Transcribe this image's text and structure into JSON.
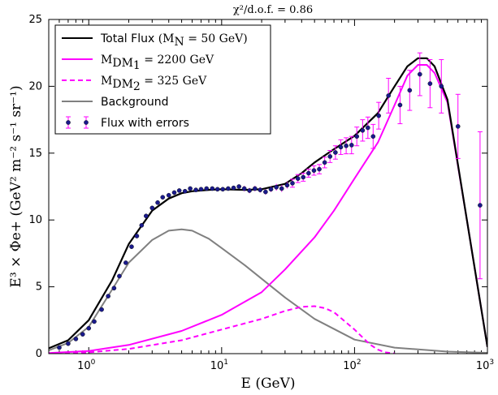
{
  "chart_data": {
    "type": "line",
    "title": "χ²/d.o.f. = 0.86",
    "xlabel": "E (GeV)",
    "ylabel": "E³ × Φe+ (GeV² m⁻² s⁻¹ sr⁻¹)",
    "xscale": "log",
    "xlim": [
      0.5,
      1000
    ],
    "ylim": [
      0,
      25
    ],
    "xticks": [
      {
        "value": 1,
        "base": "10",
        "exp": "0"
      },
      {
        "value": 10,
        "base": "10",
        "exp": "1"
      },
      {
        "value": 100,
        "base": "10",
        "exp": "2"
      },
      {
        "value": 1000,
        "base": "10",
        "exp": "3"
      }
    ],
    "yticks": [
      0,
      5,
      10,
      15,
      20,
      25
    ],
    "grid": false,
    "legend_position": "top-left",
    "legend": [
      {
        "label": "Total Flux",
        "math": "(M",
        "math_sub": "N",
        "math_after": " = 50 GeV)",
        "style": "solid",
        "color": "#000000"
      },
      {
        "label": "",
        "math": "M",
        "math_sub": "DM",
        "math_sub2": "1",
        "math_after": " = 2200 GeV",
        "style": "solid",
        "color": "#ff00ff"
      },
      {
        "label": "",
        "math": "M",
        "math_sub": "DM",
        "math_sub2": "2",
        "math_after": " = 325 GeV",
        "style": "dashed",
        "color": "#ff00ff"
      },
      {
        "label": "Background",
        "style": "solid",
        "color": "#808080"
      },
      {
        "label": "Flux with errors",
        "style": "errorbar",
        "color": "#ff00ff",
        "marker_color": "#1a1a8c"
      }
    ],
    "series": [
      {
        "id": "total",
        "color": "#000000",
        "dash": "",
        "x": [
          0.5,
          0.7,
          1,
          1.5,
          2,
          3,
          4,
          5,
          6,
          8,
          10,
          15,
          20,
          30,
          40,
          50,
          70,
          100,
          150,
          200,
          250,
          300,
          350,
          400,
          500,
          700,
          1000
        ],
        "y": [
          0.4,
          1.0,
          2.5,
          5.5,
          8.2,
          10.7,
          11.6,
          12.0,
          12.15,
          12.25,
          12.3,
          12.25,
          12.3,
          12.7,
          13.5,
          14.3,
          15.3,
          16.3,
          18.0,
          20.0,
          21.5,
          22.1,
          22.1,
          21.5,
          19.0,
          10.0,
          0.5
        ]
      },
      {
        "id": "dm1",
        "color": "#ff00ff",
        "dash": "",
        "x": [
          0.5,
          1,
          2,
          5,
          10,
          20,
          30,
          50,
          70,
          100,
          150,
          200,
          250,
          300,
          350,
          400,
          500,
          700,
          1000
        ],
        "y": [
          0.05,
          0.2,
          0.65,
          1.7,
          2.9,
          4.6,
          6.3,
          8.7,
          10.7,
          13.1,
          15.8,
          18.6,
          20.8,
          21.6,
          21.6,
          21.0,
          18.8,
          10.0,
          0.5
        ]
      },
      {
        "id": "dm2",
        "color": "#ff00ff",
        "dash": "6,4",
        "x": [
          0.5,
          1,
          2,
          5,
          10,
          20,
          30,
          40,
          50,
          60,
          70,
          100,
          130,
          150,
          170,
          200
        ],
        "y": [
          0.02,
          0.1,
          0.35,
          1.0,
          1.8,
          2.6,
          3.2,
          3.5,
          3.55,
          3.4,
          3.1,
          1.8,
          0.7,
          0.3,
          0.1,
          0.02
        ]
      },
      {
        "id": "bkg",
        "color": "#808080",
        "dash": "",
        "x": [
          0.5,
          0.7,
          1,
          1.5,
          2,
          3,
          4,
          5,
          6,
          8,
          10,
          15,
          20,
          30,
          50,
          100,
          200,
          500,
          1000
        ],
        "y": [
          0.25,
          0.8,
          2.0,
          4.8,
          6.8,
          8.5,
          9.2,
          9.3,
          9.2,
          8.6,
          7.9,
          6.6,
          5.6,
          4.2,
          2.6,
          1.05,
          0.45,
          0.15,
          0.06
        ]
      }
    ],
    "data_points": {
      "color": "#1a1a8c",
      "errorbar_color": "#ff00ff",
      "x": [
        0.6,
        0.7,
        0.8,
        0.9,
        1.0,
        1.1,
        1.25,
        1.4,
        1.55,
        1.7,
        1.9,
        2.1,
        2.3,
        2.5,
        2.7,
        3.0,
        3.3,
        3.6,
        4.0,
        4.4,
        4.8,
        5.3,
        5.8,
        6.4,
        7.0,
        7.7,
        8.5,
        9.3,
        10.2,
        11.2,
        12.3,
        13.5,
        14.8,
        16.2,
        17.8,
        19.5,
        21.4,
        23.5,
        25.8,
        28.3,
        31.1,
        34.1,
        37.5,
        41.1,
        45.1,
        49.5,
        54.3,
        59.6,
        65.4,
        71.8,
        78.8,
        86.5,
        95.0,
        104,
        115,
        126,
        138,
        152,
        180,
        220,
        260,
        310,
        370,
        450,
        600,
        880
      ],
      "y": [
        0.45,
        0.75,
        1.1,
        1.45,
        1.9,
        2.4,
        3.3,
        4.3,
        4.9,
        5.8,
        6.8,
        8.0,
        8.8,
        9.6,
        10.3,
        10.9,
        11.3,
        11.7,
        11.85,
        12.05,
        12.2,
        12.15,
        12.35,
        12.25,
        12.3,
        12.35,
        12.35,
        12.3,
        12.3,
        12.35,
        12.4,
        12.5,
        12.35,
        12.2,
        12.35,
        12.25,
        12.1,
        12.3,
        12.45,
        12.35,
        12.6,
        12.75,
        13.1,
        13.2,
        13.5,
        13.7,
        13.8,
        14.3,
        14.75,
        15.05,
        15.45,
        15.55,
        15.6,
        16.25,
        16.7,
        16.9,
        16.25,
        17.8,
        19.3,
        18.6,
        19.7,
        20.9,
        20.2,
        20.0,
        17.0,
        11.1
      ],
      "err": [
        0.1,
        0.1,
        0.1,
        0.1,
        0.1,
        0.1,
        0.12,
        0.12,
        0.12,
        0.15,
        0.15,
        0.15,
        0.15,
        0.15,
        0.15,
        0.15,
        0.15,
        0.15,
        0.15,
        0.15,
        0.15,
        0.15,
        0.15,
        0.15,
        0.15,
        0.15,
        0.15,
        0.15,
        0.15,
        0.15,
        0.15,
        0.15,
        0.2,
        0.2,
        0.2,
        0.2,
        0.2,
        0.2,
        0.25,
        0.25,
        0.25,
        0.3,
        0.3,
        0.3,
        0.3,
        0.35,
        0.35,
        0.4,
        0.45,
        0.5,
        0.55,
        0.6,
        0.65,
        0.7,
        0.8,
        0.8,
        0.9,
        1.0,
        1.3,
        1.4,
        1.5,
        1.6,
        1.8,
        2.0,
        2.4,
        5.5
      ]
    }
  }
}
